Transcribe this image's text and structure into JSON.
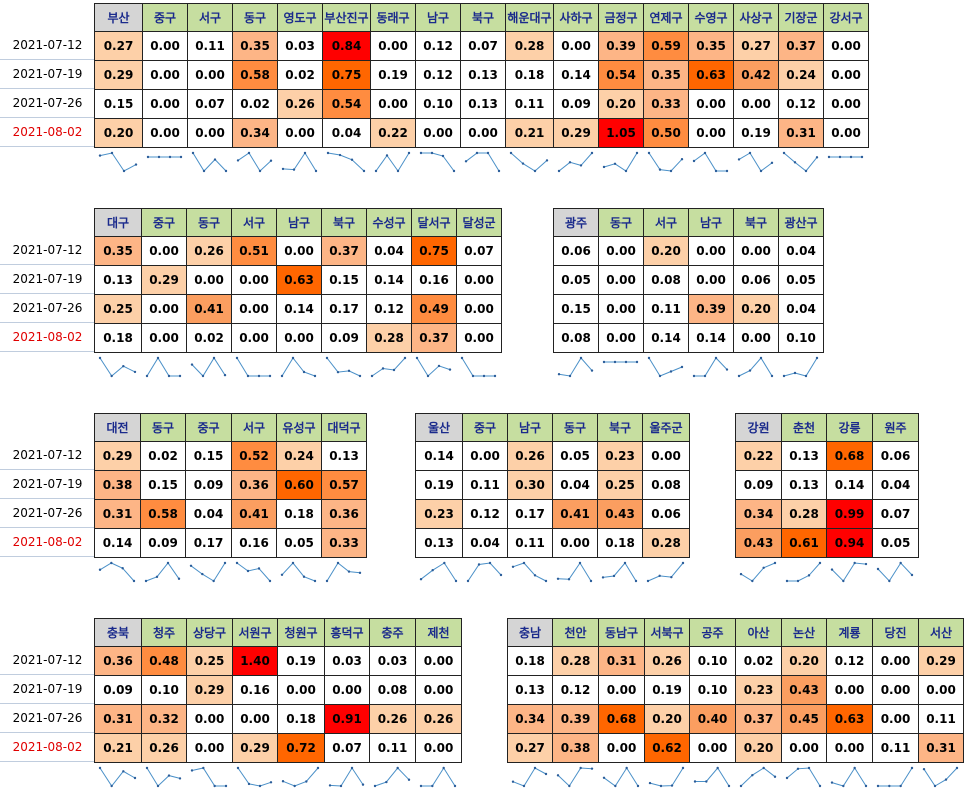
{
  "dates": [
    "2021-07-12",
    "2021-07-19",
    "2021-07-26",
    "2021-08-02"
  ],
  "highlight_color": "#e00000",
  "chart_data": [
    {
      "type": "table",
      "region": "부산",
      "columns": [
        "부산",
        "중구",
        "서구",
        "동구",
        "영도구",
        "부산진구",
        "동래구",
        "남구",
        "북구",
        "해운대구",
        "사하구",
        "금정구",
        "연제구",
        "수영구",
        "사상구",
        "기장군",
        "강서구"
      ],
      "rows": [
        [
          0.27,
          0.0,
          0.11,
          0.35,
          0.03,
          0.84,
          0.0,
          0.12,
          0.07,
          0.28,
          0.0,
          0.39,
          0.59,
          0.35,
          0.27,
          0.37,
          0.0
        ],
        [
          0.29,
          0.0,
          0.0,
          0.58,
          0.02,
          0.75,
          0.19,
          0.12,
          0.13,
          0.18,
          0.14,
          0.54,
          0.35,
          0.63,
          0.42,
          0.24,
          0.0
        ],
        [
          0.15,
          0.0,
          0.07,
          0.02,
          0.26,
          0.54,
          0.0,
          0.1,
          0.13,
          0.11,
          0.09,
          0.2,
          0.33,
          0.0,
          0.0,
          0.12,
          0.0
        ],
        [
          0.2,
          0.0,
          0.0,
          0.34,
          0.0,
          0.04,
          0.22,
          0.0,
          0.0,
          0.21,
          0.29,
          1.05,
          0.5,
          0.0,
          0.19,
          0.31,
          0.0
        ]
      ]
    },
    {
      "type": "table",
      "region": "대구",
      "columns": [
        "대구",
        "중구",
        "동구",
        "서구",
        "남구",
        "북구",
        "수성구",
        "달서구",
        "달성군"
      ],
      "rows": [
        [
          0.35,
          0.0,
          0.26,
          0.51,
          0.0,
          0.37,
          0.04,
          0.75,
          0.07
        ],
        [
          0.13,
          0.29,
          0.0,
          0.0,
          0.63,
          0.15,
          0.14,
          0.16,
          0.0
        ],
        [
          0.25,
          0.0,
          0.41,
          0.0,
          0.14,
          0.17,
          0.12,
          0.49,
          0.0
        ],
        [
          0.18,
          0.0,
          0.02,
          0.0,
          0.0,
          0.09,
          0.28,
          0.37,
          0.0
        ]
      ]
    },
    {
      "type": "table",
      "region": "광주",
      "columns": [
        "광주",
        "동구",
        "서구",
        "남구",
        "북구",
        "광산구"
      ],
      "rows": [
        [
          0.06,
          0.0,
          0.2,
          0.0,
          0.0,
          0.04
        ],
        [
          0.05,
          0.0,
          0.08,
          0.0,
          0.06,
          0.05
        ],
        [
          0.15,
          0.0,
          0.11,
          0.39,
          0.2,
          0.04
        ],
        [
          0.08,
          0.0,
          0.14,
          0.14,
          0.0,
          0.1
        ]
      ]
    },
    {
      "type": "table",
      "region": "대전",
      "columns": [
        "대전",
        "동구",
        "중구",
        "서구",
        "유성구",
        "대덕구"
      ],
      "rows": [
        [
          0.29,
          0.02,
          0.15,
          0.52,
          0.24,
          0.13
        ],
        [
          0.38,
          0.15,
          0.09,
          0.36,
          0.6,
          0.57
        ],
        [
          0.31,
          0.58,
          0.04,
          0.41,
          0.18,
          0.36
        ],
        [
          0.14,
          0.09,
          0.17,
          0.16,
          0.05,
          0.33
        ]
      ]
    },
    {
      "type": "table",
      "region": "울산",
      "columns": [
        "울산",
        "중구",
        "남구",
        "동구",
        "북구",
        "울주군"
      ],
      "rows": [
        [
          0.14,
          0.0,
          0.26,
          0.05,
          0.23,
          0.0
        ],
        [
          0.19,
          0.11,
          0.3,
          0.04,
          0.25,
          0.08
        ],
        [
          0.23,
          0.12,
          0.17,
          0.41,
          0.43,
          0.06
        ],
        [
          0.13,
          0.04,
          0.11,
          0.0,
          0.18,
          0.28
        ]
      ]
    },
    {
      "type": "table",
      "region": "강원",
      "columns": [
        "강원",
        "춘천",
        "강릉",
        "원주"
      ],
      "rows": [
        [
          0.22,
          0.13,
          0.68,
          0.06
        ],
        [
          0.09,
          0.13,
          0.14,
          0.04
        ],
        [
          0.34,
          0.28,
          0.99,
          0.07
        ],
        [
          0.43,
          0.61,
          0.94,
          0.05
        ]
      ]
    },
    {
      "type": "table",
      "region": "충북",
      "columns": [
        "충북",
        "청주",
        "상당구",
        "서원구",
        "청원구",
        "흥덕구",
        "충주",
        "제천"
      ],
      "rows": [
        [
          0.36,
          0.48,
          0.25,
          1.4,
          0.19,
          0.03,
          0.03,
          0.0
        ],
        [
          0.09,
          0.1,
          0.29,
          0.16,
          0.0,
          0.0,
          0.08,
          0.0
        ],
        [
          0.31,
          0.32,
          0.0,
          0.0,
          0.18,
          0.91,
          0.26,
          0.26
        ],
        [
          0.21,
          0.26,
          0.0,
          0.29,
          0.72,
          0.07,
          0.11,
          0.0
        ]
      ]
    },
    {
      "type": "table",
      "region": "충남",
      "columns": [
        "충남",
        "천안",
        "동남구",
        "서북구",
        "공주",
        "아산",
        "논산",
        "계룡",
        "당진",
        "서산"
      ],
      "rows": [
        [
          0.18,
          0.28,
          0.31,
          0.26,
          0.1,
          0.02,
          0.2,
          0.12,
          0.0,
          0.29
        ],
        [
          0.13,
          0.12,
          0.0,
          0.19,
          0.1,
          0.23,
          0.43,
          0.0,
          0.0,
          0.0
        ],
        [
          0.34,
          0.39,
          0.68,
          0.2,
          0.4,
          0.37,
          0.45,
          0.63,
          0.0,
          0.11
        ],
        [
          0.27,
          0.38,
          0.0,
          0.62,
          0.0,
          0.2,
          0.0,
          0.0,
          0.11,
          0.31
        ]
      ]
    }
  ]
}
